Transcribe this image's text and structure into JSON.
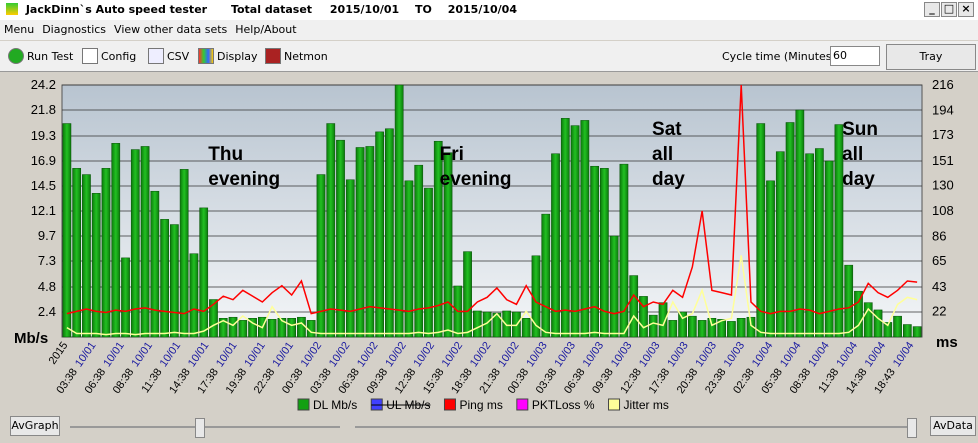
{
  "window": {
    "app": "JackDinn`s Auto speed tester",
    "dataset": "Total dataset",
    "from": "2015/10/01",
    "to_word": "TO",
    "to": "2015/10/04"
  },
  "menu": [
    "Menu",
    "Diagnostics",
    "View other data sets",
    "Help/About"
  ],
  "toolbar": [
    "Run Test",
    "Config",
    "CSV",
    "Display",
    "Netmon"
  ],
  "cycle": {
    "label": "Cycle time (Minutes) :",
    "value": "60",
    "button": "Tray"
  },
  "bottom": {
    "left": "AvGraph",
    "right": "AvData"
  },
  "chart_data": {
    "type": "bar",
    "ylabel": "Mb/s",
    "y2label": "ms",
    "grid": true,
    "ylim": [
      0,
      24.2
    ],
    "yticks": [
      2.4,
      4.8,
      7.3,
      9.7,
      12.1,
      14.5,
      16.9,
      19.3,
      21.8,
      24.2
    ],
    "y2lim": [
      0,
      216
    ],
    "y2ticks": [
      22,
      43,
      65,
      86,
      108,
      130,
      151,
      173,
      194,
      216
    ],
    "x_labels": [
      {
        "time": "2015",
        "date": ""
      },
      {
        "time": "03:38",
        "date": "10/01"
      },
      {
        "time": "06:38",
        "date": "10/01"
      },
      {
        "time": "08:38",
        "date": "10/01"
      },
      {
        "time": "11:38",
        "date": "10/01"
      },
      {
        "time": "14:38",
        "date": "10/01"
      },
      {
        "time": "17:38",
        "date": "10/01"
      },
      {
        "time": "19:38",
        "date": "10/01"
      },
      {
        "time": "22:38",
        "date": "10/01"
      },
      {
        "time": "00:38",
        "date": "10/02"
      },
      {
        "time": "03:38",
        "date": "10/02"
      },
      {
        "time": "06:38",
        "date": "10/02"
      },
      {
        "time": "09:38",
        "date": "10/02"
      },
      {
        "time": "12:38",
        "date": "10/02"
      },
      {
        "time": "15:38",
        "date": "10/02"
      },
      {
        "time": "18:38",
        "date": "10/02"
      },
      {
        "time": "21:38",
        "date": "10/02"
      },
      {
        "time": "00:38",
        "date": "10/03"
      },
      {
        "time": "03:38",
        "date": "10/03"
      },
      {
        "time": "06:38",
        "date": "10/03"
      },
      {
        "time": "09:38",
        "date": "10/03"
      },
      {
        "time": "12:38",
        "date": "10/03"
      },
      {
        "time": "17:38",
        "date": "10/03"
      },
      {
        "time": "20:38",
        "date": "10/03"
      },
      {
        "time": "23:38",
        "date": "10/03"
      },
      {
        "time": "02:38",
        "date": "10/04"
      },
      {
        "time": "05:38",
        "date": "10/04"
      },
      {
        "time": "08:38",
        "date": "10/04"
      },
      {
        "time": "11:38",
        "date": "10/04"
      },
      {
        "time": "14:38",
        "date": "10/04"
      },
      {
        "time": "18:43",
        "date": "10/04"
      }
    ],
    "annotations": [
      {
        "lines": [
          "Thu",
          "evening"
        ],
        "at": 0.205
      },
      {
        "lines": [
          "Fri",
          "evening"
        ],
        "at": 0.474
      },
      {
        "lines": [
          "Sat",
          "all",
          "day"
        ],
        "at": 0.721
      },
      {
        "lines": [
          "Sun",
          "all",
          "day"
        ],
        "at": 0.942
      }
    ],
    "series": [
      {
        "name": "DL Mb/s",
        "color": "#12a012",
        "kind": "bar",
        "values": [
          20.5,
          16.2,
          15.6,
          13.8,
          16.2,
          18.6,
          7.6,
          18.0,
          18.3,
          14.0,
          11.3,
          10.8,
          16.1,
          8.0,
          12.4,
          3.6,
          1.8,
          1.9,
          1.6,
          1.8,
          1.9,
          1.7,
          1.8,
          1.8,
          1.9,
          1.6,
          15.6,
          20.5,
          18.9,
          15.1,
          18.2,
          18.3,
          19.7,
          20.0,
          24.2,
          15.0,
          16.5,
          14.3,
          18.8,
          17.7,
          4.9,
          8.2,
          2.5,
          2.4,
          2.3,
          2.5,
          2.4,
          1.8,
          7.8,
          11.8,
          17.6,
          21.0,
          20.3,
          20.8,
          16.4,
          16.2,
          9.7,
          16.6,
          5.9,
          3.9,
          2.1,
          3.3,
          1.6,
          2.4,
          2.0,
          1.6,
          1.8,
          1.7,
          1.5,
          1.8,
          1.9,
          20.5,
          15.0,
          17.8,
          20.6,
          21.8,
          17.6,
          18.1,
          16.9,
          20.4,
          6.9,
          4.4,
          3.3,
          2.6,
          1.4,
          2.0,
          1.2,
          1.0
        ]
      },
      {
        "name": "Ping ms",
        "color": "#ff0000",
        "kind": "line",
        "axis": "y2",
        "values": [
          20,
          22,
          24,
          22,
          21,
          23,
          22,
          24,
          25,
          23,
          22,
          21,
          20,
          24,
          22,
          28,
          35,
          32,
          40,
          35,
          30,
          38,
          44,
          36,
          48,
          20,
          22,
          24,
          23,
          22,
          24,
          26,
          25,
          24,
          23,
          22,
          24,
          25,
          27,
          30,
          22,
          22,
          30,
          34,
          42,
          32,
          28,
          44,
          30,
          26,
          22,
          23,
          22,
          24,
          26,
          22,
          20,
          22,
          36,
          26,
          30,
          28,
          40,
          34,
          60,
          108,
          40,
          38,
          36,
          216,
          30,
          22,
          20,
          22,
          22,
          24,
          23,
          20,
          22,
          24,
          25,
          30,
          46,
          38,
          34,
          40,
          48,
          47
        ]
      },
      {
        "name": "Jitter ms",
        "color": "#ffff99",
        "kind": "line",
        "axis": "y2",
        "values": [
          8,
          3,
          3,
          3,
          2,
          3,
          3,
          2,
          3,
          3,
          3,
          4,
          3,
          3,
          5,
          10,
          14,
          10,
          18,
          12,
          8,
          26,
          14,
          10,
          12,
          4,
          3,
          3,
          3,
          3,
          3,
          3,
          3,
          3,
          3,
          3,
          4,
          3,
          4,
          6,
          3,
          4,
          8,
          12,
          20,
          10,
          10,
          22,
          10,
          4,
          3,
          3,
          3,
          3,
          4,
          3,
          3,
          3,
          18,
          8,
          12,
          10,
          30,
          16,
          20,
          40,
          10,
          14,
          16,
          70,
          10,
          4,
          3,
          3,
          3,
          3,
          3,
          3,
          3,
          3,
          4,
          10,
          24,
          16,
          10,
          28,
          34,
          32
        ]
      }
    ],
    "legend": [
      {
        "name": "DL Mb/s",
        "color": "#12a012"
      },
      {
        "name": "UL Mb/s",
        "color": "#4040ff"
      },
      {
        "name": "Ping ms",
        "color": "#ff0000"
      },
      {
        "name": "PKTLoss %",
        "color": "#ff00ff"
      },
      {
        "name": "Jitter ms",
        "color": "#ffff99"
      }
    ]
  }
}
